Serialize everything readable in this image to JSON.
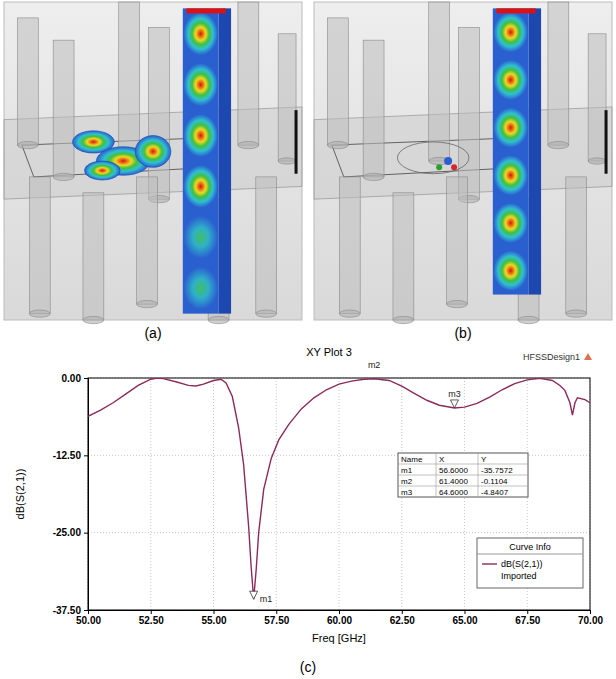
{
  "panel_labels": [
    "(a)",
    "(b)",
    "(c)"
  ],
  "chart_data": {
    "type": "line",
    "title": "XY Plot 3",
    "design_name": "HFSSDesign1",
    "x_label": "Freq [GHz]",
    "y_label": "dB(S(2,1))",
    "xlim": [
      50,
      70
    ],
    "xticks": [
      {
        "value": 50,
        "label": "50.00"
      },
      {
        "value": 52.5,
        "label": "52.50"
      },
      {
        "value": 55,
        "label": "55.00"
      },
      {
        "value": 57.5,
        "label": "57.50"
      },
      {
        "value": 60,
        "label": "60.00"
      },
      {
        "value": 62.5,
        "label": "62.50"
      },
      {
        "value": 65,
        "label": "65.00"
      },
      {
        "value": 67.5,
        "label": "67.50"
      },
      {
        "value": 70,
        "label": "70.00"
      }
    ],
    "ylim": [
      -37.5,
      0
    ],
    "yticks": [
      {
        "value": 0,
        "label": "0.00"
      },
      {
        "value": -12.5,
        "label": "-12.50"
      },
      {
        "value": -25,
        "label": "-25.00"
      },
      {
        "value": -37.5,
        "label": "-37.50"
      }
    ],
    "grid": true,
    "legend": "bottom-right",
    "legend_title": "Curve Info",
    "x": [
      50,
      50.5,
      51,
      51.5,
      52,
      52.5,
      52.75,
      53,
      53.5,
      54,
      54.3,
      54.6,
      55,
      55.3,
      55.5,
      55.75,
      56,
      56.2,
      56.4,
      56.5,
      56.6,
      56.7,
      56.8,
      57,
      57.3,
      57.6,
      58,
      58.5,
      59,
      59.5,
      60,
      60.5,
      61,
      61.4,
      62,
      62.5,
      63,
      63.5,
      64,
      64.6,
      65,
      65.5,
      66,
      66.5,
      67,
      67.5,
      68,
      68.5,
      68.8,
      69,
      69.2,
      69.3,
      69.4,
      69.5,
      69.8,
      70
    ],
    "series": [
      {
        "name": "dB(S(2,1))",
        "source": "Imported",
        "color": "#8b2a5c",
        "line_style": "solid",
        "values": [
          -6.2,
          -5.2,
          -4.0,
          -2.6,
          -1.2,
          -0.2,
          0.0,
          -0.1,
          -0.6,
          -1.2,
          -1.3,
          -1.0,
          -0.4,
          -0.2,
          -0.8,
          -3.0,
          -8.0,
          -14.0,
          -24.0,
          -30.5,
          -35.76,
          -31.0,
          -25.0,
          -18.0,
          -13.0,
          -10.0,
          -7.5,
          -5.0,
          -3.2,
          -1.9,
          -1.0,
          -0.5,
          -0.2,
          -0.11,
          -0.4,
          -1.3,
          -2.5,
          -3.6,
          -4.4,
          -4.84,
          -4.7,
          -4.1,
          -3.1,
          -1.9,
          -0.9,
          -0.3,
          -0.05,
          -0.4,
          -1.2,
          -2.0,
          -4.0,
          -6.0,
          -4.0,
          -3.2,
          -3.5,
          -4.0
        ]
      }
    ],
    "markers": [
      {
        "name": "m1",
        "x": 56.6,
        "y": -35.7572
      },
      {
        "name": "m2",
        "x": 61.4,
        "y": -0.1104
      },
      {
        "name": "m3",
        "x": 64.6,
        "y": -4.8407
      }
    ],
    "marker_table": {
      "columns": [
        "Name",
        "X",
        "Y"
      ],
      "rows": [
        [
          "m1",
          "56.6000",
          "-35.7572"
        ],
        [
          "m2",
          "61.4000",
          "-0.1104"
        ],
        [
          "m3",
          "64.6000",
          "-4.8407"
        ]
      ]
    }
  }
}
